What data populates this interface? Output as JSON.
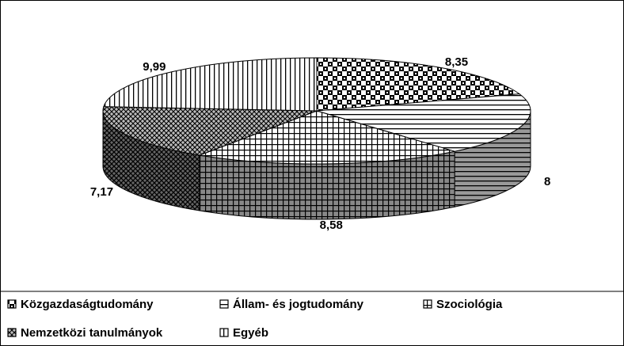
{
  "chart_data": {
    "type": "pie",
    "categories": [
      "Közgazdaságtudomány",
      "Állam- és jogtudomány",
      "Szociológia",
      "Nemzetközi tanulmányok",
      "Egyéb"
    ],
    "values": [
      8.35,
      8,
      8.58,
      7.17,
      9.99
    ],
    "value_labels": [
      "8,35",
      "8",
      "8,58",
      "7,17",
      "9,99"
    ]
  }
}
